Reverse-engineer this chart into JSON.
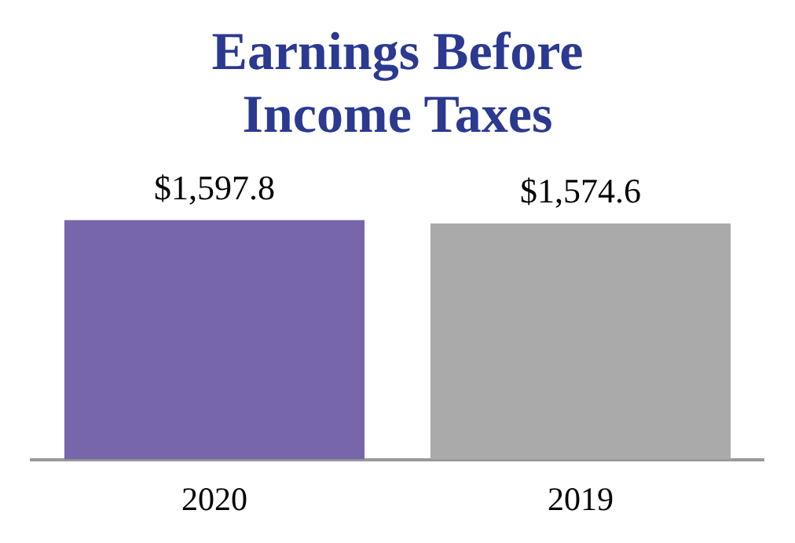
{
  "chart_data": {
    "type": "bar",
    "title": "Earnings Before Income Taxes",
    "categories": [
      "2020",
      "2019"
    ],
    "values": [
      1597.8,
      1574.6
    ],
    "colors": [
      "#7866ab",
      "#aaaaaa"
    ],
    "value_labels": [
      "$1,597.8",
      "$1,574.6"
    ],
    "grid": false,
    "legend": false
  }
}
